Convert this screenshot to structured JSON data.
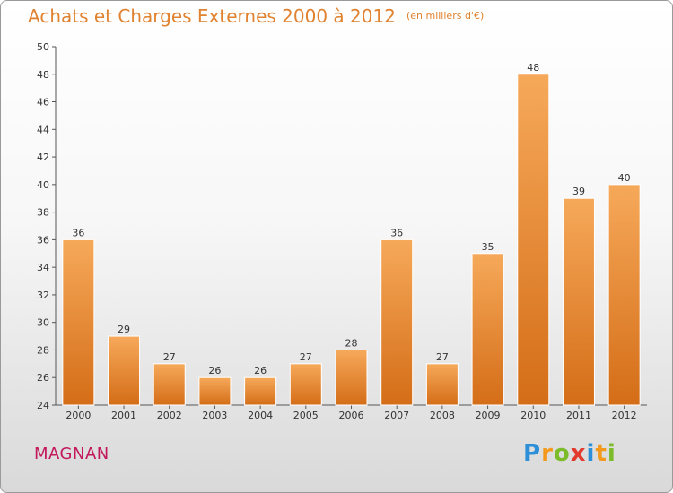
{
  "header": {
    "title": "Achats et Charges Externes 2000 à 2012",
    "unit": "(en milliers d'€)"
  },
  "footer": {
    "commune": "MAGNAN",
    "logo": "Proxiti"
  },
  "colors": {
    "bar_light": "#f6a95a",
    "bar_dark": "#d46d17",
    "title": "#e0822f",
    "commune": "#c2185b"
  },
  "chart_data": {
    "type": "bar",
    "title": "Achats et Charges Externes 2000 à 2012",
    "subtitle": "(en milliers d'€)",
    "categories": [
      "2000",
      "2001",
      "2002",
      "2003",
      "2004",
      "2005",
      "2006",
      "2007",
      "2008",
      "2009",
      "2010",
      "2011",
      "2012"
    ],
    "values": [
      36,
      29,
      27,
      26,
      26,
      27,
      28,
      36,
      27,
      35,
      48,
      39,
      40
    ],
    "ylim": [
      24,
      50
    ],
    "yticks": [
      24,
      26,
      28,
      30,
      32,
      34,
      36,
      38,
      40,
      42,
      44,
      46,
      48,
      50
    ],
    "grid": false,
    "legend": "none"
  }
}
